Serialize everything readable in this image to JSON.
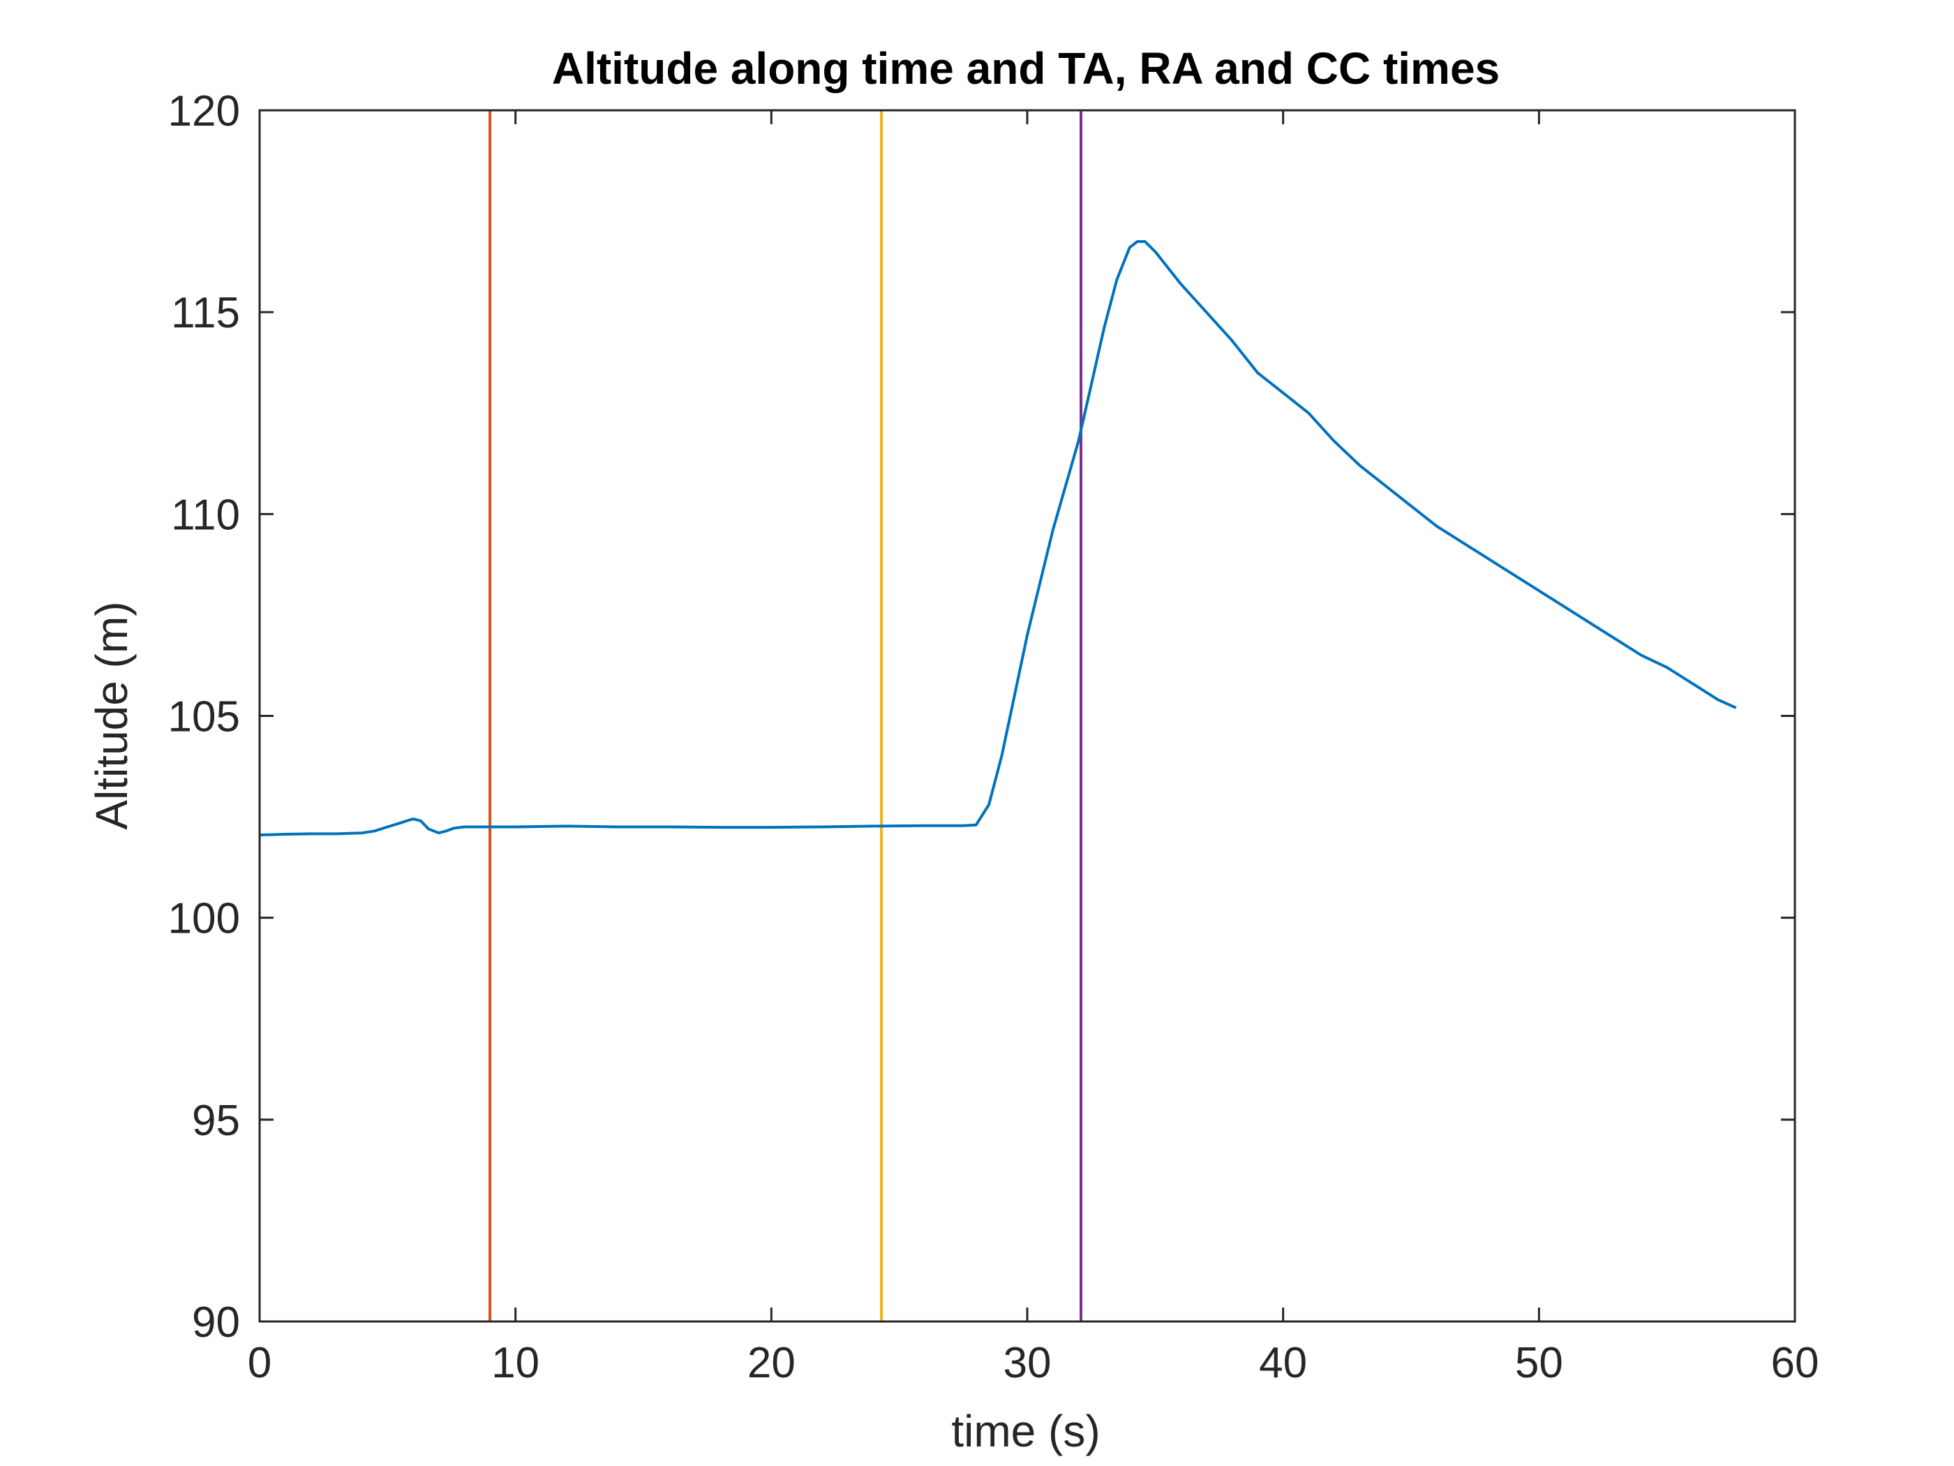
{
  "chart_data": {
    "type": "line",
    "title": "Altitude along time and TA, RA and CC times",
    "xlabel": "time (s)",
    "ylabel": "Altitude (m)",
    "xlim": [
      0,
      60
    ],
    "ylim": [
      90,
      120
    ],
    "xticks": [
      0,
      10,
      20,
      30,
      40,
      50,
      60
    ],
    "yticks": [
      90,
      95,
      100,
      105,
      110,
      115,
      120
    ],
    "xtick_labels": [
      "0",
      "10",
      "20",
      "30",
      "40",
      "50",
      "60"
    ],
    "ytick_labels": [
      "90",
      "95",
      "100",
      "105",
      "110",
      "115",
      "120"
    ],
    "grid": false,
    "legend": null,
    "series": [
      {
        "color": "#0072BD",
        "x": [
          0,
          1,
          2,
          3,
          4,
          4.5,
          5,
          5.5,
          6,
          6.3,
          6.6,
          7,
          7.3,
          7.6,
          8,
          9,
          10,
          12,
          14,
          16,
          18,
          20,
          22,
          24,
          26,
          27.5,
          28,
          28.5,
          29,
          29.5,
          30,
          30.5,
          31,
          31.5,
          32,
          32.5,
          33,
          33.5,
          34,
          34.3,
          34.6,
          35,
          35.5,
          36,
          37,
          38,
          39,
          40,
          41,
          42,
          43,
          44,
          45,
          46,
          47,
          48,
          49,
          50,
          51,
          52,
          53,
          54,
          55,
          56,
          57,
          57.7
        ],
        "y": [
          102.05,
          102.07,
          102.08,
          102.08,
          102.1,
          102.15,
          102.25,
          102.35,
          102.45,
          102.4,
          102.2,
          102.1,
          102.15,
          102.22,
          102.25,
          102.25,
          102.25,
          102.27,
          102.25,
          102.25,
          102.24,
          102.24,
          102.25,
          102.27,
          102.28,
          102.28,
          102.3,
          102.8,
          104.0,
          105.5,
          107.0,
          108.3,
          109.6,
          110.7,
          111.8,
          113.2,
          114.6,
          115.8,
          116.6,
          116.75,
          116.75,
          116.5,
          116.1,
          115.7,
          115.0,
          114.3,
          113.5,
          113.0,
          112.5,
          111.8,
          111.2,
          110.7,
          110.2,
          109.7,
          109.3,
          108.9,
          108.5,
          108.1,
          107.7,
          107.3,
          106.9,
          106.5,
          106.2,
          105.8,
          105.4,
          105.2
        ]
      }
    ],
    "vertical_lines": [
      {
        "x": 9.0,
        "color": "#D95319"
      },
      {
        "x": 24.3,
        "color": "#EDB120"
      },
      {
        "x": 32.1,
        "color": "#7E2F8E"
      }
    ]
  }
}
